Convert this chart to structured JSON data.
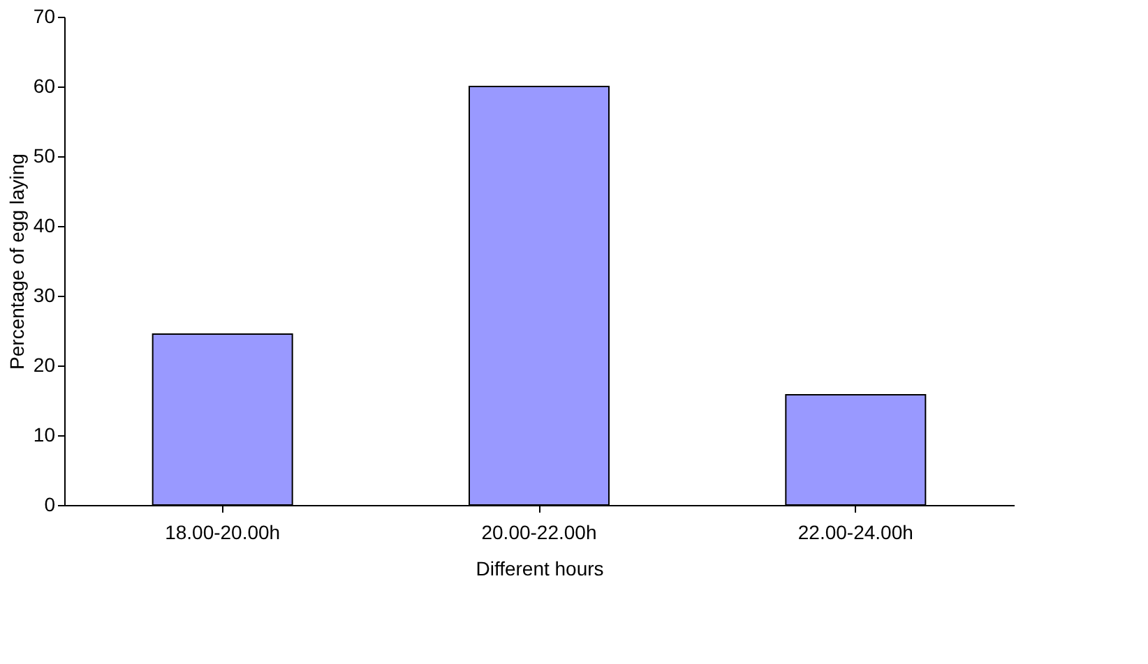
{
  "chart_data": {
    "type": "bar",
    "xlabel": "Different hours",
    "ylabel": "Percentage of egg laying",
    "categories": [
      "18.00-20.00h",
      "20.00-22.00h",
      "22.00-24.00h"
    ],
    "values": [
      24.5,
      60,
      15.8
    ],
    "color": "#9999ff",
    "ylim": [
      0,
      70
    ],
    "yticks": [
      0,
      10,
      20,
      30,
      40,
      50,
      60,
      70
    ],
    "grid": false
  }
}
